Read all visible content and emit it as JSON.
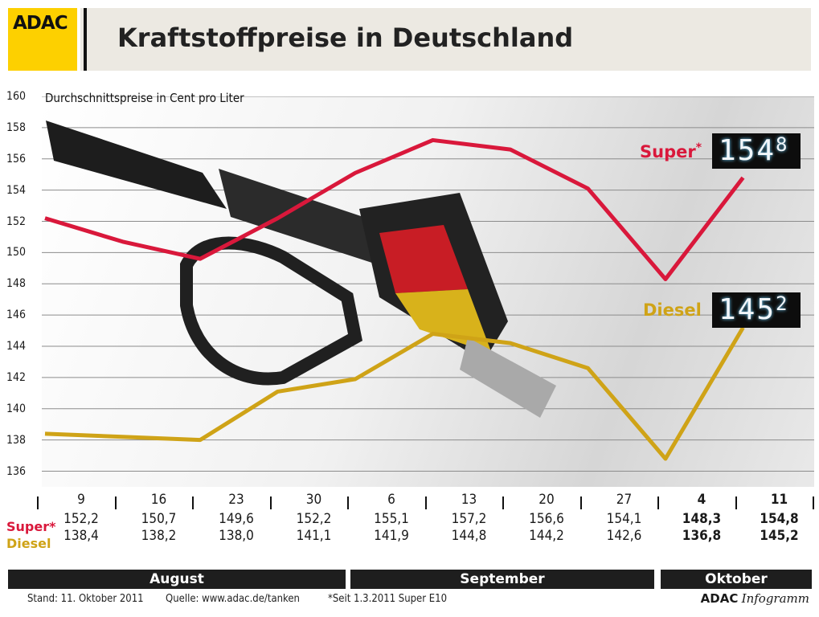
{
  "header": {
    "logo": "ADAC",
    "title": "Kraftstoffpreise in Deutschland"
  },
  "colors": {
    "super": "#d9183b",
    "diesel": "#cfa317",
    "logo_bg": "#fdd000"
  },
  "labels": {
    "super": "Super",
    "super_mark": "*",
    "diesel": "Diesel",
    "row_super": "Super*",
    "row_diesel": "Diesel"
  },
  "displays": {
    "super_main": "154",
    "super_dec": "8",
    "diesel_main": "145",
    "diesel_dec": "2"
  },
  "chart_data": {
    "type": "line",
    "title": "Kraftstoffpreise in Deutschland",
    "subtitle": "Durchschnittspreise in Cent pro Liter",
    "ylim": [
      135,
      160
    ],
    "yticks": [
      "160",
      "158",
      "156",
      "154",
      "152",
      "150",
      "148",
      "146",
      "144",
      "142",
      "140",
      "138",
      "136"
    ],
    "categories": [
      "9",
      "16",
      "23",
      "30",
      "6",
      "13",
      "20",
      "27",
      "4",
      "11"
    ],
    "series": [
      {
        "name": "Super*",
        "values": [
          152.2,
          150.7,
          149.6,
          152.2,
          155.1,
          157.2,
          156.6,
          154.1,
          148.3,
          154.8
        ]
      },
      {
        "name": "Diesel",
        "values": [
          138.4,
          138.2,
          138.0,
          141.1,
          141.9,
          144.8,
          144.2,
          142.6,
          136.8,
          145.2
        ]
      }
    ],
    "super_labels": [
      "152,2",
      "150,7",
      "149,6",
      "152,2",
      "155,1",
      "157,2",
      "156,6",
      "154,1",
      "148,3",
      "154,8"
    ],
    "diesel_labels": [
      "138,4",
      "138,2",
      "138,0",
      "141,1",
      "141,9",
      "144,8",
      "144,2",
      "142,6",
      "136,8",
      "145,2"
    ],
    "months": [
      "August",
      "September",
      "Oktober"
    ],
    "grid": true
  },
  "footer": {
    "stand": "Stand: 11. Oktober 2011",
    "quelle": "Quelle: www.adac.de/tanken",
    "note": "*Seit 1.3.2011 Super E10",
    "brand_bold": "ADAC",
    "brand_italic": "Infogramm"
  }
}
